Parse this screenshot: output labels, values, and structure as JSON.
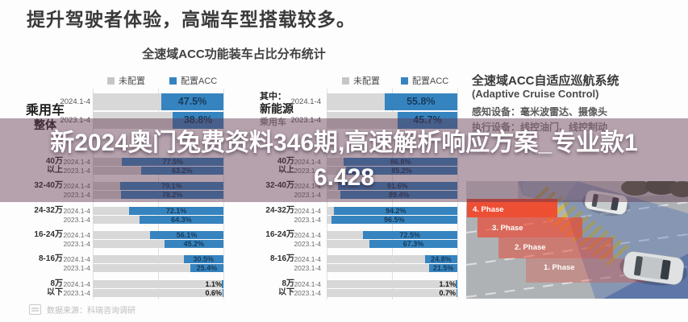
{
  "page": {
    "title": "提升驾驶者体验，高端车型搭载较多。",
    "chart_title": "全速域ACC功能装车占比分布统计",
    "source": "数据来源：科瑞咨询调研"
  },
  "banner": {
    "line1": "新2024奥门兔费资料346期,高速解析响应方案_专业款1",
    "line2": "6.428",
    "full_text": "新2024奥门兔费资料346期,高速解析响应方案_专业款16.428"
  },
  "legend": {
    "not_equipped": "未配置",
    "equipped": "配置ACC"
  },
  "colors": {
    "bar_blue": "#3684bf",
    "bar_gray": "#d8d8d8",
    "legend_gray": "#c6c6c6",
    "value_text": "#173a5a",
    "banner_overlay": "rgba(94,52,76,0.45)",
    "banner_text": "#ffffff"
  },
  "chart_data": [
    {
      "type": "bar",
      "title": "乘用车整体",
      "group_label_lines": [
        "乘用车",
        "整体"
      ],
      "orientation": "horizontal",
      "unit": "%",
      "xlim": [
        0,
        100
      ],
      "legend": [
        "未配置",
        "配置ACC"
      ],
      "categories": [
        "整体",
        "40万以上",
        "32-40万",
        "24-32万",
        "16-24万",
        "8-16万",
        "8万以下"
      ],
      "cat_lines": [
        [
          "40万",
          "以上"
        ],
        [
          "32-40万"
        ],
        [
          "24-32万"
        ],
        [
          "16-24万"
        ],
        [
          "8-16万"
        ],
        [
          "8万",
          "以下"
        ]
      ],
      "series": [
        {
          "name": "2024.1-4",
          "values": [
            47.5,
            77.5,
            79.1,
            72.1,
            56.1,
            30.5,
            1.1
          ]
        },
        {
          "name": "2023.1-4",
          "values": [
            38.8,
            63.2,
            78.2,
            64.3,
            45.2,
            25.4,
            0.6
          ]
        }
      ]
    },
    {
      "type": "bar",
      "title": "其中：新能源乘用车",
      "group_label_lines": [
        "其中：",
        "新能源",
        "乘用车"
      ],
      "orientation": "horizontal",
      "unit": "%",
      "xlim": [
        0,
        100
      ],
      "legend": [
        "未配置",
        "配置ACC"
      ],
      "categories": [
        "整体",
        "40万以上",
        "32-40万",
        "24-32万",
        "16-24万",
        "8-16万",
        "8万以下"
      ],
      "cat_lines": [
        [
          "40万",
          "以上"
        ],
        [
          "32-40万"
        ],
        [
          "24-32万"
        ],
        [
          "16-24万"
        ],
        [
          "8-16万"
        ],
        [
          "8万",
          "以下"
        ]
      ],
      "series": [
        {
          "name": "2024.1-4",
          "values": [
            55.8,
            86.8,
            91.6,
            94.2,
            72.5,
            24.8,
            1.1
          ]
        },
        {
          "name": "2023.1-4",
          "values": [
            45.7,
            85.2,
            89.4,
            96.5,
            67.3,
            21.5,
            0.7
          ]
        }
      ]
    }
  ],
  "info_panel": {
    "title": "全速域ACC自适应巡航系统",
    "subtitle": "(Adaptive Cruise Control)",
    "line1": "感知设备：毫米波雷达、摄像头",
    "line2": "执行设备：线控油门、线控制动",
    "phases": [
      "4. Phase",
      "3. Phase",
      "2. Phase",
      "1. Phase"
    ]
  }
}
